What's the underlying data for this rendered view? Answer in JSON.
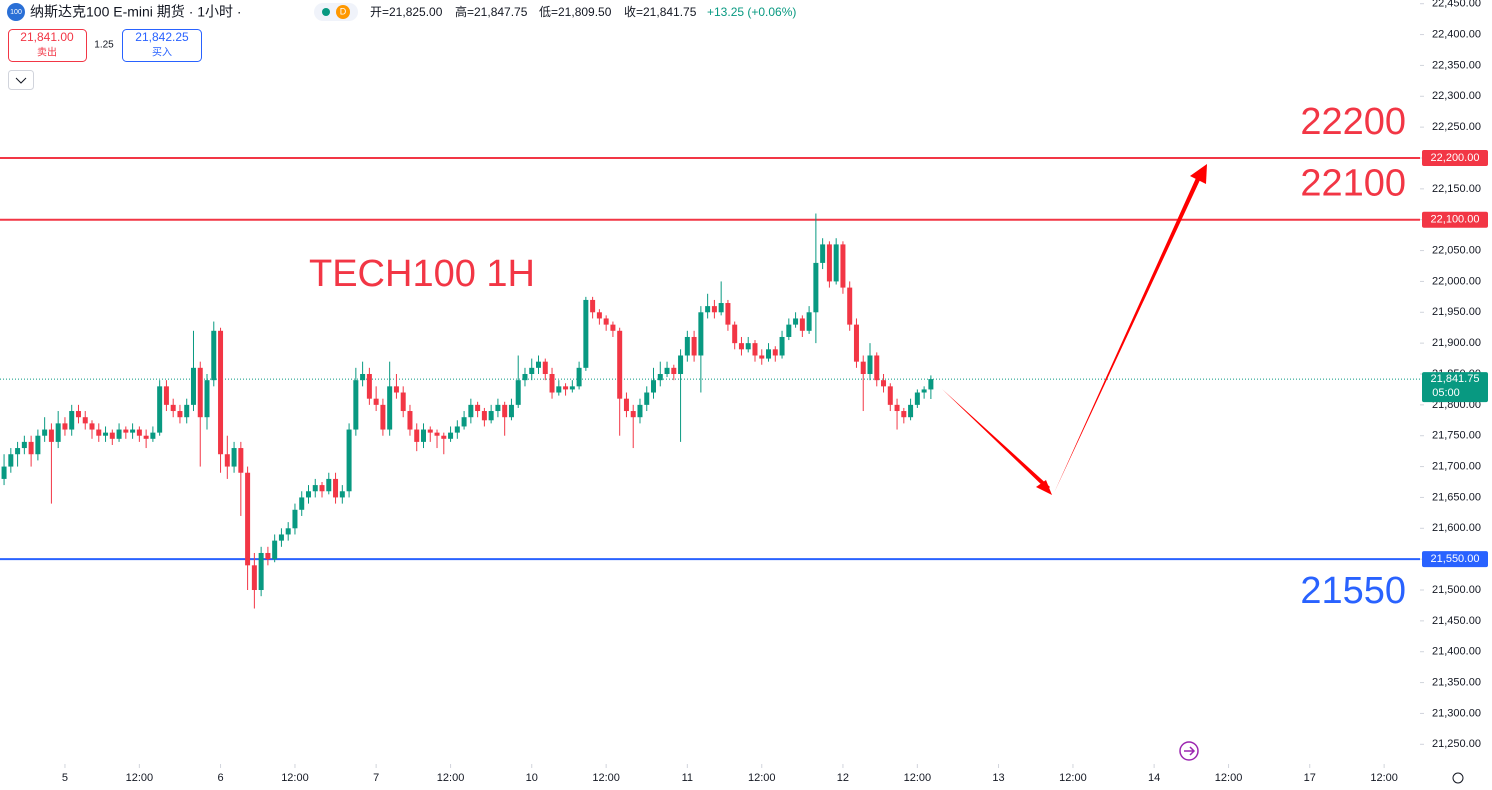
{
  "header": {
    "symbol_badge": "100",
    "title": "纳斯达克100 E-mini 期货 · 1小时 ·",
    "interval_badge": "D",
    "ohlc": [
      "开=21,825.00",
      "高=21,847.75",
      "低=21,809.50",
      "收=21,841.75"
    ],
    "change": "+13.25 (+0.06%)"
  },
  "trade": {
    "sell_price": "21,841.00",
    "sell_label": "卖出",
    "spread": "1.25",
    "buy_price": "21,842.25",
    "buy_label": "买入"
  },
  "chart_data": {
    "type": "candlestick",
    "annotation": "TECH100 1H",
    "up_color": "#089981",
    "down_color": "#f23645",
    "xlim": [
      -9.6,
      200.3
    ],
    "ylim": [
      21244,
      22456
    ],
    "xticks": [
      {
        "value": 0,
        "label": "5"
      },
      {
        "value": 11,
        "label": "12:00"
      },
      {
        "value": 23,
        "label": "6"
      },
      {
        "value": 34,
        "label": "12:00"
      },
      {
        "value": 46,
        "label": "7"
      },
      {
        "value": 57,
        "label": "12:00"
      },
      {
        "value": 69,
        "label": "10"
      },
      {
        "value": 80,
        "label": "12:00"
      },
      {
        "value": 92,
        "label": "11"
      },
      {
        "value": 103,
        "label": "12:00"
      },
      {
        "value": 115,
        "label": "12"
      },
      {
        "value": 126,
        "label": "12:00"
      },
      {
        "value": 138,
        "label": "13"
      },
      {
        "value": 149,
        "label": "12:00"
      },
      {
        "value": 161,
        "label": "14"
      },
      {
        "value": 172,
        "label": "12:00"
      },
      {
        "value": 184,
        "label": "17"
      },
      {
        "value": 195,
        "label": "12:00"
      }
    ],
    "yticks": [
      {
        "value": 21250,
        "label": "21,250.00"
      },
      {
        "value": 21300,
        "label": "21,300.00"
      },
      {
        "value": 21350,
        "label": "21,350.00"
      },
      {
        "value": 21400,
        "label": "21,400.00"
      },
      {
        "value": 21450,
        "label": "21,450.00"
      },
      {
        "value": 21500,
        "label": "21,500.00"
      },
      {
        "value": 21550,
        "label": "21,550.00"
      },
      {
        "value": 21600,
        "label": "21,600.00"
      },
      {
        "value": 21650,
        "label": "21,650.00"
      },
      {
        "value": 21700,
        "label": "21,700.00"
      },
      {
        "value": 21750,
        "label": "21,750.00"
      },
      {
        "value": 21800,
        "label": "21,800.00"
      },
      {
        "value": 21850,
        "label": "21,850.00"
      },
      {
        "value": 21900,
        "label": "21,900.00"
      },
      {
        "value": 21950,
        "label": "21,950.00"
      },
      {
        "value": 22000,
        "label": "22,000.00"
      },
      {
        "value": 22050,
        "label": "22,050.00"
      },
      {
        "value": 22100,
        "label": "22,100.00"
      },
      {
        "value": 22150,
        "label": "22,150.00"
      },
      {
        "value": 22200,
        "label": "22,200.00"
      },
      {
        "value": 22250,
        "label": "22,250.00"
      },
      {
        "value": 22300,
        "label": "22,300.00"
      },
      {
        "value": 22350,
        "label": "22,350.00"
      },
      {
        "value": 22400,
        "label": "22,400.00"
      },
      {
        "value": 22450,
        "label": "22,450.00"
      }
    ],
    "hlines": [
      {
        "value": 22200,
        "label": "22,200.00",
        "note": "22200",
        "color": "#f23645"
      },
      {
        "value": 22100,
        "label": "22,100.00",
        "note": "22100",
        "color": "#f23645"
      },
      {
        "value": 21550,
        "label": "21,550.00",
        "note": "21550",
        "color": "#2962ff"
      }
    ],
    "last_price": {
      "value": 21841.75,
      "label": "21,841.75",
      "countdown": "05:00"
    },
    "x": [
      -9,
      -8,
      -7,
      -6,
      -5,
      -4,
      -3,
      -2,
      -1,
      0,
      1,
      2,
      3,
      4,
      5,
      6,
      7,
      8,
      9,
      10,
      11,
      12,
      13,
      14,
      15,
      16,
      17,
      18,
      19,
      20,
      21,
      22,
      23,
      24,
      25,
      26,
      27,
      28,
      29,
      30,
      31,
      32,
      33,
      34,
      35,
      36,
      37,
      38,
      39,
      40,
      41,
      42,
      43,
      44,
      45,
      46,
      47,
      48,
      49,
      50,
      51,
      52,
      53,
      54,
      55,
      56,
      57,
      58,
      59,
      60,
      61,
      62,
      63,
      64,
      65,
      66,
      67,
      68,
      69,
      70,
      71,
      72,
      73,
      74,
      75,
      76,
      77,
      78,
      79,
      80,
      81,
      82,
      83,
      84,
      85,
      86,
      87,
      88,
      89,
      90,
      91,
      92,
      93,
      94,
      95,
      96,
      97,
      98,
      99,
      100,
      101,
      102,
      103,
      104,
      105,
      106,
      107,
      108,
      109,
      110,
      111,
      112,
      113,
      114,
      115,
      116,
      117,
      118,
      119,
      120,
      121,
      122,
      123,
      124,
      125,
      126,
      127,
      128
    ],
    "candles": [
      [
        21680,
        21720,
        21670,
        21700
      ],
      [
        21700,
        21730,
        21690,
        21720
      ],
      [
        21720,
        21740,
        21700,
        21730
      ],
      [
        21730,
        21750,
        21720,
        21740
      ],
      [
        21740,
        21750,
        21700,
        21720
      ],
      [
        21720,
        21760,
        21710,
        21750
      ],
      [
        21750,
        21780,
        21740,
        21760
      ],
      [
        21760,
        21770,
        21640,
        21740
      ],
      [
        21740,
        21790,
        21730,
        21770
      ],
      [
        21770,
        21780,
        21750,
        21760
      ],
      [
        21760,
        21800,
        21750,
        21790
      ],
      [
        21790,
        21800,
        21770,
        21780
      ],
      [
        21780,
        21790,
        21760,
        21770
      ],
      [
        21770,
        21775,
        21745,
        21760
      ],
      [
        21760,
        21770,
        21740,
        21750
      ],
      [
        21750,
        21765,
        21740,
        21755
      ],
      [
        21755,
        21760,
        21735,
        21745
      ],
      [
        21745,
        21770,
        21740,
        21760
      ],
      [
        21760,
        21765,
        21745,
        21755
      ],
      [
        21755,
        21770,
        21745,
        21760
      ],
      [
        21760,
        21765,
        21740,
        21750
      ],
      [
        21750,
        21760,
        21730,
        21745
      ],
      [
        21745,
        21765,
        21740,
        21755
      ],
      [
        21755,
        21840,
        21750,
        21830
      ],
      [
        21830,
        21840,
        21790,
        21800
      ],
      [
        21800,
        21810,
        21780,
        21790
      ],
      [
        21790,
        21800,
        21770,
        21780
      ],
      [
        21780,
        21810,
        21770,
        21800
      ],
      [
        21800,
        21920,
        21790,
        21860
      ],
      [
        21860,
        21870,
        21700,
        21780
      ],
      [
        21780,
        21850,
        21760,
        21840
      ],
      [
        21840,
        21935,
        21830,
        21920
      ],
      [
        21920,
        21925,
        21690,
        21720
      ],
      [
        21720,
        21750,
        21680,
        21700
      ],
      [
        21700,
        21740,
        21690,
        21730
      ],
      [
        21730,
        21740,
        21620,
        21690
      ],
      [
        21690,
        21700,
        21500,
        21540
      ],
      [
        21540,
        21560,
        21470,
        21500
      ],
      [
        21500,
        21570,
        21490,
        21560
      ],
      [
        21560,
        21570,
        21540,
        21550
      ],
      [
        21550,
        21590,
        21545,
        21580
      ],
      [
        21580,
        21600,
        21570,
        21590
      ],
      [
        21590,
        21610,
        21580,
        21600
      ],
      [
        21600,
        21640,
        21590,
        21630
      ],
      [
        21630,
        21660,
        21620,
        21650
      ],
      [
        21650,
        21670,
        21640,
        21660
      ],
      [
        21660,
        21680,
        21650,
        21670
      ],
      [
        21670,
        21675,
        21650,
        21660
      ],
      [
        21660,
        21690,
        21655,
        21680
      ],
      [
        21680,
        21690,
        21640,
        21650
      ],
      [
        21650,
        21670,
        21640,
        21660
      ],
      [
        21660,
        21770,
        21650,
        21760
      ],
      [
        21760,
        21860,
        21750,
        21840
      ],
      [
        21840,
        21870,
        21830,
        21850
      ],
      [
        21850,
        21860,
        21800,
        21810
      ],
      [
        21810,
        21830,
        21790,
        21800
      ],
      [
        21800,
        21810,
        21750,
        21760
      ],
      [
        21760,
        21870,
        21750,
        21830
      ],
      [
        21830,
        21850,
        21810,
        21820
      ],
      [
        21820,
        21830,
        21780,
        21790
      ],
      [
        21790,
        21800,
        21750,
        21760
      ],
      [
        21760,
        21770,
        21725,
        21740
      ],
      [
        21740,
        21770,
        21730,
        21760
      ],
      [
        21760,
        21765,
        21740,
        21755
      ],
      [
        21755,
        21760,
        21730,
        21750
      ],
      [
        21750,
        21755,
        21720,
        21745
      ],
      [
        21745,
        21765,
        21740,
        21755
      ],
      [
        21755,
        21775,
        21745,
        21765
      ],
      [
        21765,
        21790,
        21760,
        21780
      ],
      [
        21780,
        21810,
        21770,
        21800
      ],
      [
        21800,
        21805,
        21780,
        21790
      ],
      [
        21790,
        21795,
        21765,
        21775
      ],
      [
        21775,
        21800,
        21770,
        21790
      ],
      [
        21790,
        21810,
        21780,
        21800
      ],
      [
        21800,
        21805,
        21750,
        21780
      ],
      [
        21780,
        21810,
        21775,
        21800
      ],
      [
        21800,
        21880,
        21795,
        21840
      ],
      [
        21840,
        21860,
        21830,
        21850
      ],
      [
        21850,
        21875,
        21840,
        21860
      ],
      [
        21860,
        21880,
        21850,
        21870
      ],
      [
        21870,
        21875,
        21840,
        21850
      ],
      [
        21850,
        21860,
        21810,
        21820
      ],
      [
        21820,
        21840,
        21815,
        21830
      ],
      [
        21830,
        21835,
        21815,
        21825
      ],
      [
        21825,
        21840,
        21820,
        21830
      ],
      [
        21830,
        21870,
        21825,
        21860
      ],
      [
        21860,
        21975,
        21855,
        21970
      ],
      [
        21970,
        21975,
        21940,
        21950
      ],
      [
        21950,
        21955,
        21930,
        21940
      ],
      [
        21940,
        21945,
        21920,
        21930
      ],
      [
        21930,
        21935,
        21910,
        21920
      ],
      [
        21920,
        21925,
        21750,
        21810
      ],
      [
        21810,
        21820,
        21780,
        21790
      ],
      [
        21790,
        21800,
        21730,
        21780
      ],
      [
        21780,
        21810,
        21770,
        21800
      ],
      [
        21800,
        21830,
        21790,
        21820
      ],
      [
        21820,
        21860,
        21810,
        21840
      ],
      [
        21840,
        21870,
        21830,
        21850
      ],
      [
        21850,
        21870,
        21845,
        21860
      ],
      [
        21860,
        21865,
        21840,
        21850
      ],
      [
        21850,
        21890,
        21740,
        21880
      ],
      [
        21880,
        21920,
        21870,
        21910
      ],
      [
        21910,
        21920,
        21870,
        21880
      ],
      [
        21880,
        21960,
        21820,
        21950
      ],
      [
        21950,
        21980,
        21940,
        21960
      ],
      [
        21960,
        21970,
        21940,
        21950
      ],
      [
        21950,
        22000,
        21945,
        21965
      ],
      [
        21965,
        21970,
        21920,
        21930
      ],
      [
        21930,
        21935,
        21890,
        21900
      ],
      [
        21900,
        21910,
        21880,
        21890
      ],
      [
        21890,
        21910,
        21885,
        21900
      ],
      [
        21900,
        21905,
        21870,
        21880
      ],
      [
        21880,
        21890,
        21865,
        21875
      ],
      [
        21875,
        21900,
        21870,
        21890
      ],
      [
        21890,
        21895,
        21870,
        21880
      ],
      [
        21880,
        21920,
        21875,
        21910
      ],
      [
        21910,
        21940,
        21905,
        21930
      ],
      [
        21930,
        21950,
        21925,
        21940
      ],
      [
        21940,
        21945,
        21910,
        21920
      ],
      [
        21920,
        21960,
        21915,
        21950
      ],
      [
        21950,
        22110,
        21900,
        22030
      ],
      [
        22030,
        22070,
        22020,
        22060
      ],
      [
        22060,
        22065,
        21990,
        22000
      ],
      [
        22000,
        22070,
        21995,
        22060
      ],
      [
        22060,
        22065,
        21980,
        21990
      ],
      [
        21990,
        22000,
        21920,
        21930
      ],
      [
        21930,
        21940,
        21860,
        21870
      ],
      [
        21870,
        21880,
        21790,
        21850
      ],
      [
        21850,
        21900,
        21840,
        21880
      ],
      [
        21880,
        21885,
        21830,
        21840
      ],
      [
        21840,
        21850,
        21820,
        21830
      ],
      [
        21830,
        21835,
        21790,
        21800
      ],
      [
        21800,
        21810,
        21760,
        21790
      ],
      [
        21790,
        21795,
        21770,
        21780
      ],
      [
        21780,
        21810,
        21775,
        21800
      ],
      [
        21800,
        21825,
        21795,
        21820
      ],
      [
        21820,
        21830,
        21810,
        21825
      ],
      [
        21825,
        21847.75,
        21809.5,
        21841.75
      ]
    ]
  }
}
